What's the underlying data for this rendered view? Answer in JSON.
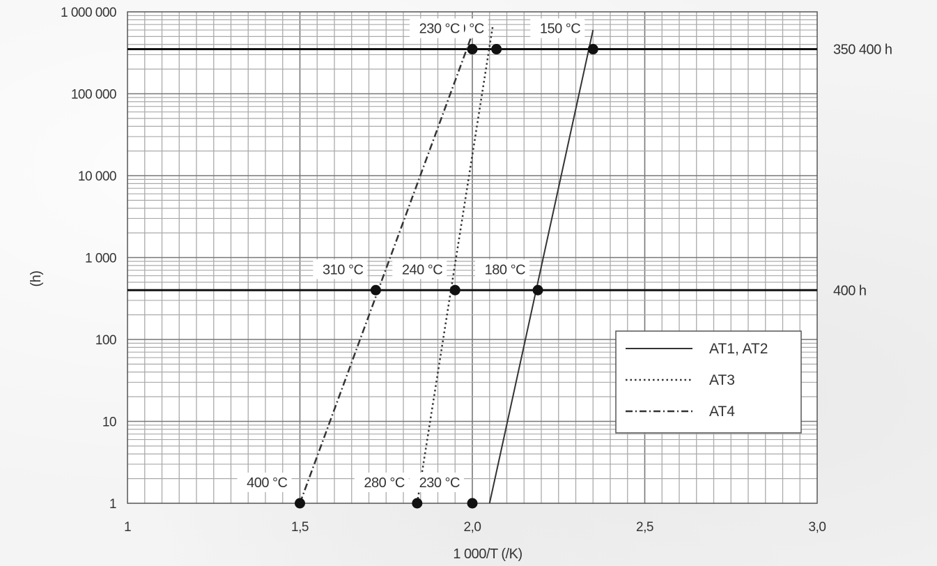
{
  "chart_data": {
    "type": "line",
    "title": "",
    "xlabel": "1 000/T   (/K)",
    "ylabel": "(h)",
    "xlim": [
      1.0,
      3.0
    ],
    "ylim": [
      1,
      1000000
    ],
    "y_scale": "log",
    "grid": true,
    "legend_position": "lower-right",
    "x_ticks": [
      {
        "value": 1.0,
        "label": "1"
      },
      {
        "value": 1.5,
        "label": "1,5"
      },
      {
        "value": 2.0,
        "label": "2,0"
      },
      {
        "value": 2.5,
        "label": "2,5"
      },
      {
        "value": 3.0,
        "label": "3,0"
      }
    ],
    "y_ticks": [
      {
        "value": 1,
        "label": "1"
      },
      {
        "value": 10,
        "label": "10"
      },
      {
        "value": 100,
        "label": "100"
      },
      {
        "value": 1000,
        "label": "1 000"
      },
      {
        "value": 10000,
        "label": "10 000"
      },
      {
        "value": 100000,
        "label": "100 000"
      },
      {
        "value": 1000000,
        "label": "1 000 000"
      }
    ],
    "reference_lines": [
      {
        "y": 400,
        "label": "400 h"
      },
      {
        "y": 350400,
        "label": "350 400 h"
      }
    ],
    "series": [
      {
        "name": "AT1, AT2",
        "style": "solid",
        "line": [
          {
            "x": 2.05,
            "y": 1
          },
          {
            "x": 2.35,
            "y": 600000
          }
        ],
        "points": [
          {
            "x": 2.19,
            "y": 400,
            "label": "180 °C"
          },
          {
            "x": 2.35,
            "y": 350400,
            "label": "150 °C"
          },
          {
            "x": 2.0,
            "y": 1,
            "label": "230 °C"
          }
        ]
      },
      {
        "name": "AT3",
        "style": "dotted",
        "line": [
          {
            "x": 1.84,
            "y": 1
          },
          {
            "x": 2.06,
            "y": 700000
          }
        ],
        "points": [
          {
            "x": 1.84,
            "y": 1,
            "label": "280 °C"
          },
          {
            "x": 1.95,
            "y": 400,
            "label": "240 °C"
          },
          {
            "x": 2.07,
            "y": 350400,
            "label": "210 °C"
          }
        ]
      },
      {
        "name": "AT4",
        "style": "dashdot",
        "line": [
          {
            "x": 1.5,
            "y": 1
          },
          {
            "x": 2.01,
            "y": 700000
          }
        ],
        "points": [
          {
            "x": 1.5,
            "y": 1,
            "label": "400 °C"
          },
          {
            "x": 1.72,
            "y": 400,
            "label": "310 °C"
          },
          {
            "x": 2.0,
            "y": 350400,
            "label": "230 °C"
          }
        ]
      }
    ]
  }
}
